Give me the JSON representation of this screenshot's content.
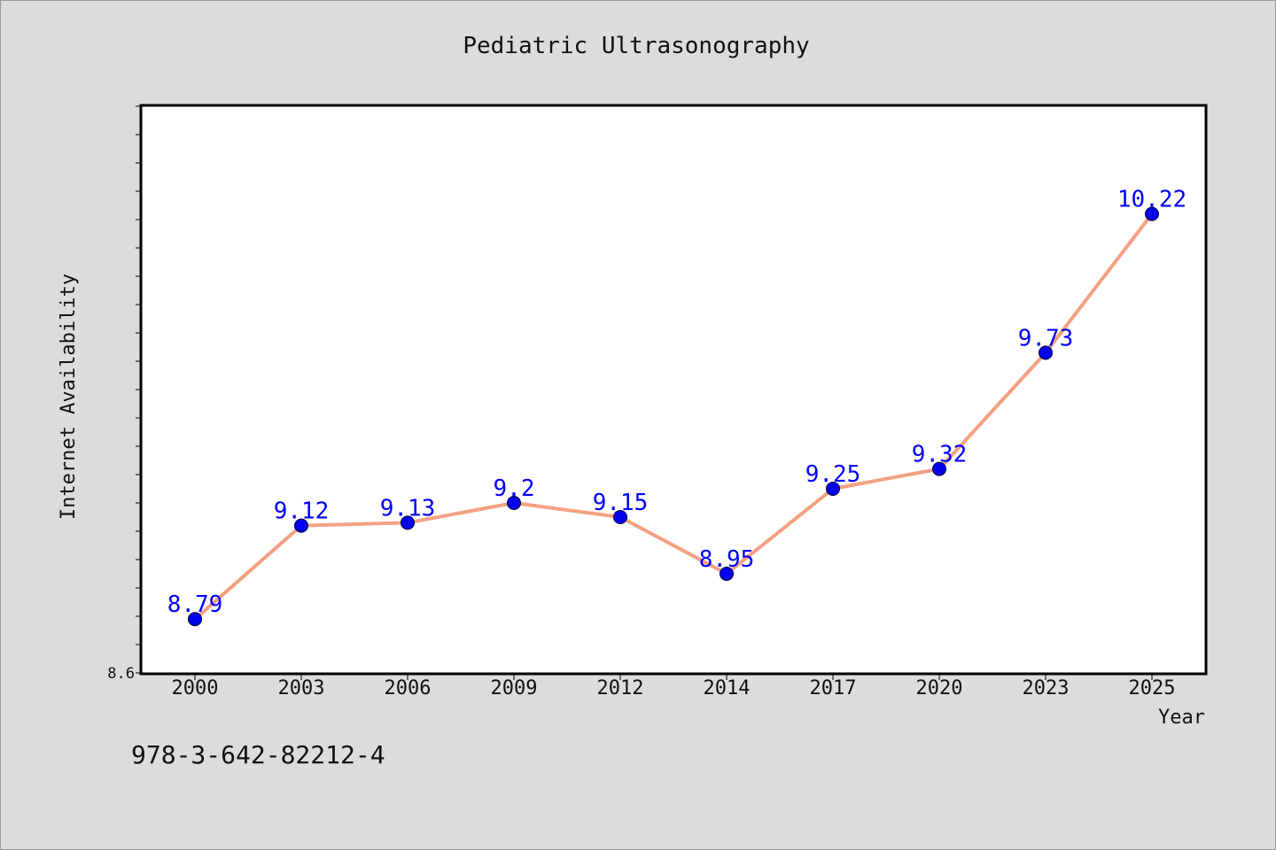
{
  "chart_data": {
    "type": "line",
    "title": "Pediatric Ultrasonography",
    "xlabel": "Year",
    "ylabel": "Internet Availability",
    "categories": [
      "2000",
      "2003",
      "2006",
      "2009",
      "2012",
      "2014",
      "2017",
      "2020",
      "2023",
      "2025"
    ],
    "series": [
      {
        "values": [
          8.79,
          9.12,
          9.13,
          9.2,
          9.15,
          8.95,
          9.25,
          9.32,
          9.73,
          10.22
        ]
      }
    ],
    "data_labels": [
      "8.79",
      "9.12",
      "9.13",
      "9.2",
      "9.15",
      "8.95",
      "9.25",
      "9.32",
      "9.73",
      "10.22"
    ],
    "ylim": [
      8.6,
      10.6
    ],
    "y_tick_labels_shown": [
      "8.6"
    ],
    "grid": false,
    "legend": "none",
    "colors": {
      "line": "#f4a080",
      "marker": "#0000ee",
      "data_label": "#0000ff",
      "plot_background": "#ffffff",
      "figure_background": "#dcdcdc"
    }
  },
  "footer": {
    "isbn": "978-3-642-82212-4"
  }
}
